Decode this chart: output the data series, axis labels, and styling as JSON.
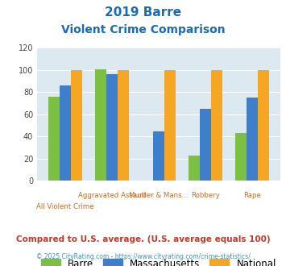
{
  "title_line1": "2019 Barre",
  "title_line2": "Violent Crime Comparison",
  "categories": [
    "All Violent Crime",
    "Aggravated Assault",
    "Murder & Mans...",
    "Robbery",
    "Rape"
  ],
  "barre": [
    76,
    101,
    0,
    23,
    43
  ],
  "massachusetts": [
    86,
    96,
    45,
    65,
    75
  ],
  "national": [
    100,
    100,
    100,
    100,
    100
  ],
  "bar_colors": {
    "barre": "#7bc043",
    "massachusetts": "#3f7fca",
    "national": "#f5a623"
  },
  "ylim": [
    0,
    120
  ],
  "yticks": [
    0,
    20,
    40,
    60,
    80,
    100,
    120
  ],
  "title_color": "#1a6ab5",
  "axis_bg_color": "#dde9f0",
  "fig_bg_color": "#ffffff",
  "legend_labels": [
    "Barre",
    "Massachusetts",
    "National"
  ],
  "footnote1": "Compared to U.S. average. (U.S. average equals 100)",
  "footnote2": "© 2025 CityRating.com - https://www.cityrating.com/crime-statistics/",
  "footnote1_color": "#c0392b",
  "footnote2_color": "#4a90b0",
  "xlabel_color": "#c07030",
  "top_labels": [
    "",
    "Aggravated Assault",
    "Murder & Mans...",
    "Robbery",
    "Rape"
  ],
  "bottom_labels": [
    "All Violent Crime",
    "",
    "",
    "",
    ""
  ]
}
